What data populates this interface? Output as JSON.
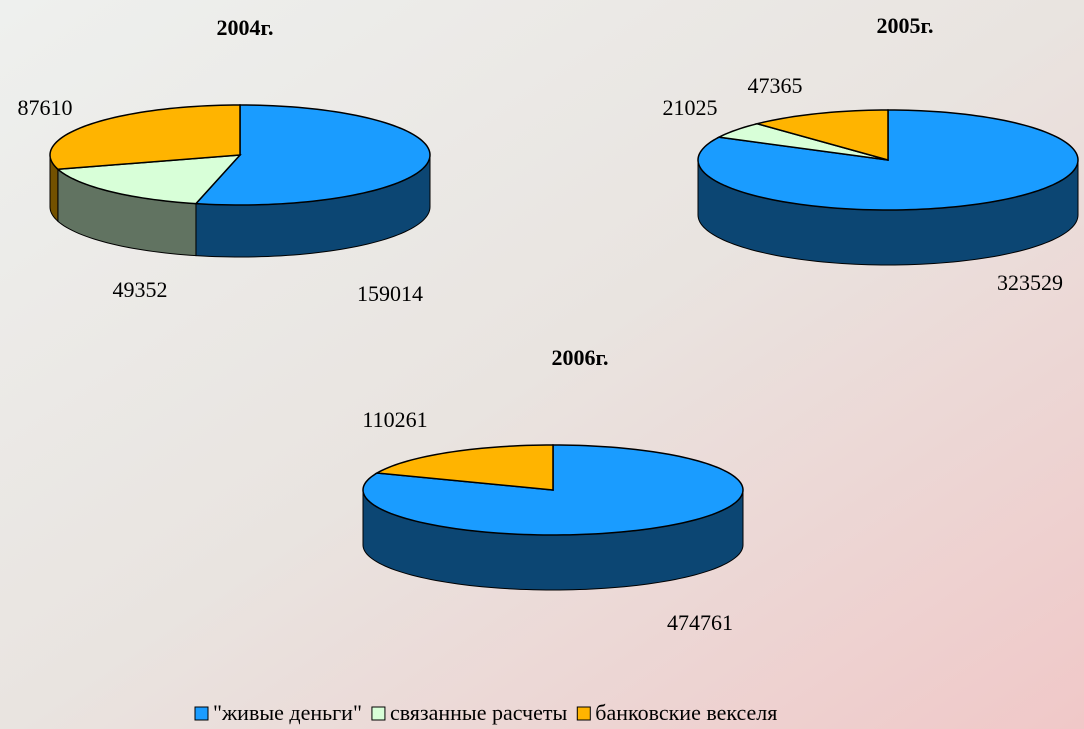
{
  "chart_data": [
    {
      "type": "pie",
      "title": "2004г.",
      "categories": [
        "\"живые деньги\"",
        "связанные расчеты",
        "банковские векселя"
      ],
      "values": [
        159014,
        49352,
        87610
      ],
      "colors": [
        "#1a9cff",
        "#d8ffd8",
        "#ffb400"
      ]
    },
    {
      "type": "pie",
      "title": "2005г.",
      "categories": [
        "\"живые деньги\"",
        "связанные расчеты",
        "банковские векселя"
      ],
      "values": [
        323529,
        21025,
        47365
      ],
      "colors": [
        "#1a9cff",
        "#d8ffd8",
        "#ffb400"
      ]
    },
    {
      "type": "pie",
      "title": "2006г.",
      "categories": [
        "\"живые деньги\"",
        "связанные расчеты",
        "банковские векселя"
      ],
      "values": [
        474761,
        null,
        110261
      ],
      "colors": [
        "#1a9cff",
        "#d8ffd8",
        "#ffb400"
      ]
    }
  ]
}
